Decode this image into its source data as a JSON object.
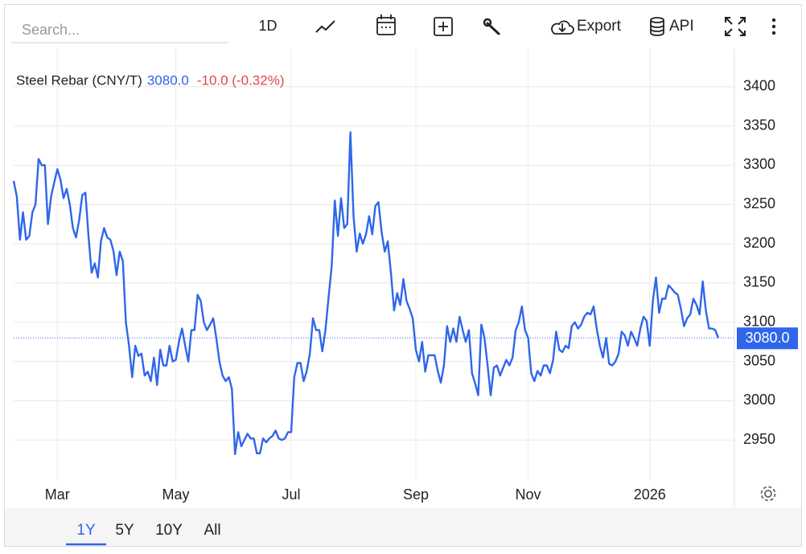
{
  "chart_data": {
    "type": "line",
    "series": [
      {
        "name": "Steel Rebar (CNY/T)",
        "color": "#2f66ea",
        "values": [
          3280,
          3260,
          3205,
          3240,
          3205,
          3210,
          3240,
          3250,
          3308,
          3300,
          3300,
          3225,
          3260,
          3278,
          3295,
          3282,
          3258,
          3270,
          3250,
          3220,
          3208,
          3230,
          3262,
          3265,
          3210,
          3163,
          3175,
          3157,
          3203,
          3220,
          3208,
          3205,
          3191,
          3160,
          3190,
          3178,
          3100,
          3070,
          3030,
          3070,
          3057,
          3060,
          3032,
          3037,
          3025,
          3055,
          3020,
          3065,
          3045,
          3045,
          3070,
          3050,
          3052,
          3075,
          3092,
          3070,
          3050,
          3090,
          3090,
          3135,
          3127,
          3100,
          3090,
          3097,
          3105,
          3080,
          3050,
          3032,
          3025,
          3030,
          3015,
          2932,
          2960,
          2942,
          2950,
          2958,
          2952,
          2952,
          2933,
          2933,
          2952,
          2947,
          2952,
          2955,
          2962,
          2952,
          2950,
          2952,
          2960,
          2960,
          3030,
          3048,
          3048,
          3025,
          3038,
          3060,
          3105,
          3090,
          3090,
          3063,
          3090,
          3132,
          3172,
          3255,
          3210,
          3258,
          3220,
          3225,
          3342,
          3235,
          3190,
          3213,
          3200,
          3212,
          3235,
          3212,
          3248,
          3253,
          3215,
          3190,
          3203,
          3163,
          3115,
          3137,
          3122,
          3155,
          3127,
          3117,
          3105,
          3065,
          3050,
          3075,
          3037,
          3058,
          3058,
          3058,
          3038,
          3023,
          3045,
          3095,
          3075,
          3092,
          3075,
          3107,
          3090,
          3075,
          3090,
          3035,
          3022,
          3007,
          3097,
          3080,
          3045,
          3007,
          3042,
          3045,
          3032,
          3042,
          3052,
          3045,
          3055,
          3090,
          3100,
          3120,
          3090,
          3080,
          3035,
          3025,
          3038,
          3032,
          3045,
          3045,
          3035,
          3052,
          3088,
          3065,
          3062,
          3070,
          3067,
          3095,
          3100,
          3092,
          3097,
          3107,
          3112,
          3110,
          3120,
          3092,
          3070,
          3055,
          3080,
          3047,
          3045,
          3050,
          3060,
          3088,
          3083,
          3070,
          3088,
          3080,
          3070,
          3092,
          3107,
          3102,
          3070,
          3127,
          3157,
          3112,
          3130,
          3130,
          3147,
          3143,
          3138,
          3135,
          3117,
          3095,
          3105,
          3110,
          3130,
          3122,
          3110,
          3152,
          3115,
          3092,
          3092,
          3090,
          3080
        ],
        "value_labels": {
          "226": "3080.0"
        }
      }
    ],
    "change_label": "-10.0 (-0.32%)",
    "categories": [
      null,
      null,
      null,
      null,
      null,
      null,
      null,
      null,
      null,
      null,
      null,
      null,
      null,
      null,
      "Mar",
      null,
      null,
      null,
      null,
      null,
      null,
      null,
      null,
      null,
      null,
      null,
      null,
      null,
      null,
      null,
      null,
      null,
      null,
      null,
      null,
      null,
      null,
      null,
      null,
      null,
      null,
      null,
      null,
      null,
      null,
      null,
      null,
      null,
      null,
      null,
      null,
      null,
      "May",
      null,
      null,
      null,
      null,
      null,
      null,
      null,
      null,
      null,
      null,
      null,
      null,
      null,
      null,
      null,
      null,
      null,
      null,
      null,
      null,
      null,
      null,
      null,
      null,
      null,
      null,
      null,
      null,
      null,
      null,
      null,
      null,
      null,
      null,
      null,
      null,
      "Jul",
      null,
      null,
      null,
      null,
      null,
      null,
      null,
      null,
      null,
      null,
      null,
      null,
      null,
      null,
      null,
      null,
      null,
      null,
      null,
      null,
      null,
      null,
      null,
      null,
      null,
      null,
      null,
      null,
      null,
      null,
      null,
      null,
      null,
      null,
      null,
      null,
      null,
      null,
      null,
      "Sep",
      null,
      null,
      null,
      null,
      null,
      null,
      null,
      null,
      null,
      null,
      null,
      null,
      null,
      null,
      null,
      null,
      null,
      null,
      null,
      null,
      null,
      null,
      null,
      null,
      null,
      null,
      null,
      null,
      null,
      null,
      null,
      null,
      null,
      null,
      null,
      "Nov",
      null,
      null,
      null,
      null,
      null,
      null,
      null,
      null,
      null,
      null,
      null,
      null,
      null,
      null,
      null,
      null,
      null,
      null,
      null,
      null,
      null,
      null,
      null,
      null,
      null,
      null,
      null,
      null,
      null,
      null,
      null,
      null,
      null,
      null,
      null,
      null,
      null,
      null,
      "2026",
      null,
      null,
      null,
      null,
      null,
      null,
      null,
      null,
      null,
      null,
      null,
      null,
      null,
      null,
      null,
      null,
      null,
      null,
      null,
      null,
      null,
      null
    ],
    "ylim": [
      2899,
      3449
    ],
    "yticks": [
      2950,
      3000,
      3050,
      3100,
      3150,
      3200,
      3250,
      3300,
      3350,
      3400
    ],
    "grid": true
  },
  "ui": {
    "search_placeholder": "Search...",
    "interval": "1D",
    "export": "Export",
    "api": "API",
    "ranges": [
      "1Y",
      "5Y",
      "10Y",
      "All"
    ],
    "active_range": 0
  }
}
